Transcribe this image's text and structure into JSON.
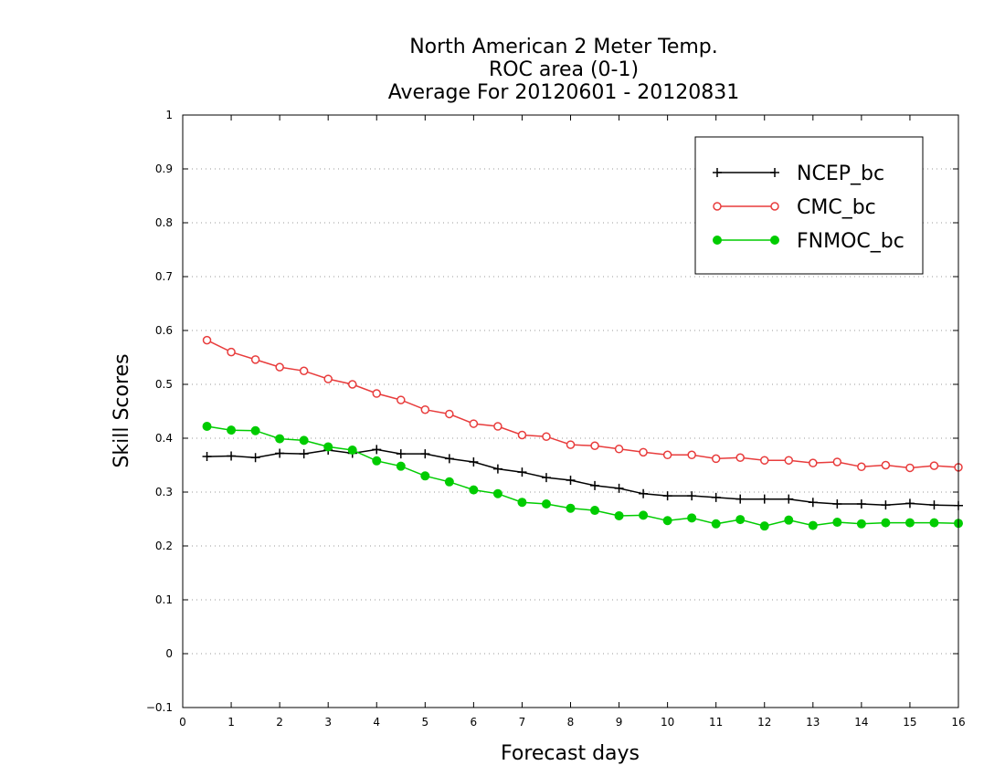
{
  "chart_data": {
    "type": "line",
    "title_lines": [
      "North American 2 Meter Temp.",
      "ROC area (0-1)",
      "Average For 20120601 - 20120831"
    ],
    "xlabel": "Forecast days",
    "ylabel": "Skill Scores",
    "xlim": [
      0,
      16
    ],
    "ylim": [
      -0.1,
      1
    ],
    "xticks": [
      "0",
      "1",
      "2",
      "3",
      "4",
      "5",
      "6",
      "7",
      "8",
      "9",
      "10",
      "11",
      "12",
      "13",
      "14",
      "15",
      "16"
    ],
    "yticks": [
      "−0.1",
      "0",
      "0.1",
      "0.2",
      "0.3",
      "0.4",
      "0.5",
      "0.6",
      "0.7",
      "0.8",
      "0.9",
      "1"
    ],
    "ytick_values": [
      -0.1,
      0,
      0.1,
      0.2,
      0.3,
      0.4,
      0.5,
      0.6,
      0.7,
      0.8,
      0.9,
      1
    ],
    "grid": "horizontal dotted",
    "legend_position": "top-right",
    "x": [
      0.5,
      1,
      1.5,
      2,
      2.5,
      3,
      3.5,
      4,
      4.5,
      5,
      5.5,
      6,
      6.5,
      7,
      7.5,
      8,
      8.5,
      9,
      9.5,
      10,
      10.5,
      11,
      11.5,
      12,
      12.5,
      13,
      13.5,
      14,
      14.5,
      15,
      15.5,
      16
    ],
    "series": [
      {
        "name": "NCEP_bc",
        "color": "#000000",
        "marker": "plus",
        "values": [
          0.366,
          0.367,
          0.364,
          0.372,
          0.371,
          0.378,
          0.372,
          0.379,
          0.371,
          0.371,
          0.362,
          0.356,
          0.343,
          0.337,
          0.327,
          0.322,
          0.312,
          0.307,
          0.297,
          0.293,
          0.293,
          0.29,
          0.287,
          0.287,
          0.287,
          0.281,
          0.278,
          0.278,
          0.276,
          0.279,
          0.276,
          0.275
        ]
      },
      {
        "name": "CMC_bc",
        "color": "#e83c3c",
        "marker": "open-circle",
        "values": [
          0.582,
          0.56,
          0.546,
          0.532,
          0.525,
          0.51,
          0.5,
          0.483,
          0.471,
          0.453,
          0.445,
          0.427,
          0.422,
          0.406,
          0.403,
          0.388,
          0.386,
          0.38,
          0.374,
          0.369,
          0.369,
          0.362,
          0.364,
          0.359,
          0.359,
          0.354,
          0.356,
          0.347,
          0.35,
          0.345,
          0.349,
          0.346
        ]
      },
      {
        "name": "FNMOC_bc",
        "color": "#00cc00",
        "marker": "filled-circle",
        "values": [
          0.422,
          0.415,
          0.414,
          0.399,
          0.396,
          0.384,
          0.378,
          0.358,
          0.348,
          0.33,
          0.319,
          0.304,
          0.297,
          0.281,
          0.278,
          0.27,
          0.266,
          0.256,
          0.257,
          0.247,
          0.252,
          0.241,
          0.249,
          0.237,
          0.248,
          0.238,
          0.244,
          0.241,
          0.243,
          0.243,
          0.243,
          0.242
        ]
      }
    ]
  }
}
